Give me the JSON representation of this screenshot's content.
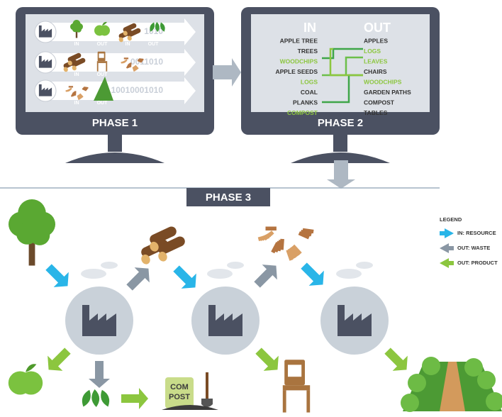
{
  "phase1": {
    "title": "PHASE 1",
    "rows": [
      {
        "binary": "1010",
        "labels": [
          "IN",
          "OUT",
          "IN",
          "OUT"
        ]
      },
      {
        "binary": "0011010",
        "labels": [
          "IN",
          "OUT"
        ]
      },
      {
        "binary": "10010001010",
        "labels": [
          "IN",
          "OUT"
        ]
      }
    ]
  },
  "phase2": {
    "title": "PHASE 2",
    "in_header": "IN",
    "out_header": "OUT",
    "in_items": [
      {
        "label": "APPLE TREE",
        "highlight": false
      },
      {
        "label": "TREES",
        "highlight": false
      },
      {
        "label": "WOODCHIPS",
        "highlight": true
      },
      {
        "label": "APPLE SEEDS",
        "highlight": false
      },
      {
        "label": "LOGS",
        "highlight": true
      },
      {
        "label": "COAL",
        "highlight": false
      },
      {
        "label": "PLANKS",
        "highlight": false
      },
      {
        "label": "COMPOST",
        "highlight": true
      }
    ],
    "out_items": [
      {
        "label": "APPLES",
        "highlight": false
      },
      {
        "label": "LOGS",
        "highlight": true
      },
      {
        "label": "LEAVES",
        "highlight": true
      },
      {
        "label": "CHAIRS",
        "highlight": false
      },
      {
        "label": "WOODCHIPS",
        "highlight": true
      },
      {
        "label": "GARDEN PATHS",
        "highlight": false
      },
      {
        "label": "COMPOST",
        "highlight": false
      },
      {
        "label": "TABLES",
        "highlight": false
      }
    ]
  },
  "phase3": {
    "title": "PHASE 3",
    "compost_sign": [
      "COM",
      "POST"
    ]
  },
  "legend": {
    "title": "LEGEND",
    "items": [
      {
        "label": "IN: RESOURCE",
        "color": "#29b5e8"
      },
      {
        "label": "OUT: WASTE",
        "color": "#8a97a4"
      },
      {
        "label": "OUT: PRODUCT",
        "color": "#8cc63f"
      }
    ]
  }
}
